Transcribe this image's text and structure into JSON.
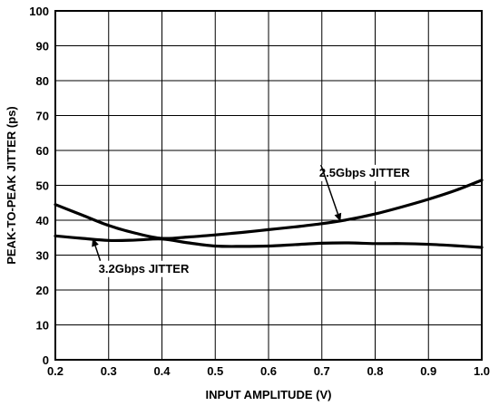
{
  "chart_data": {
    "type": "line",
    "xlabel": "INPUT AMPLITUDE (V)",
    "ylabel": "PEAK-TO-PEAK JITTER (ps)",
    "xlim": [
      0.2,
      1.0
    ],
    "ylim": [
      0,
      100
    ],
    "xticks": [
      "0.2",
      "0.3",
      "0.4",
      "0.5",
      "0.6",
      "0.7",
      "0.8",
      "0.9",
      "1.0"
    ],
    "yticks": [
      "0",
      "10",
      "20",
      "30",
      "40",
      "50",
      "60",
      "70",
      "80",
      "90",
      "100"
    ],
    "grid": true,
    "series": [
      {
        "name": "2.5Gbps JITTER",
        "x": [
          0.2,
          0.25,
          0.3,
          0.35,
          0.4,
          0.45,
          0.5,
          0.55,
          0.6,
          0.65,
          0.7,
          0.75,
          0.8,
          0.85,
          0.9,
          0.95,
          1.0
        ],
        "y": [
          44.5,
          41.5,
          38.5,
          36.3,
          34.8,
          35.2,
          35.8,
          36.5,
          37.3,
          38.1,
          39.0,
          40.2,
          41.8,
          43.8,
          46.0,
          48.5,
          51.5
        ]
      },
      {
        "name": "3.2Gbps JITTER",
        "x": [
          0.2,
          0.25,
          0.3,
          0.35,
          0.4,
          0.45,
          0.5,
          0.55,
          0.6,
          0.65,
          0.7,
          0.75,
          0.8,
          0.85,
          0.9,
          0.95,
          1.0
        ],
        "y": [
          35.5,
          34.8,
          34.2,
          34.3,
          34.6,
          33.5,
          32.6,
          32.5,
          32.6,
          33.0,
          33.4,
          33.5,
          33.3,
          33.3,
          33.1,
          32.7,
          32.2
        ]
      }
    ],
    "annotations": [
      {
        "text": "2.5Gbps JITTER",
        "series": "2.5Gbps JITTER",
        "text_x": 0.78,
        "text_y": 52.5,
        "arrow_x": 0.735,
        "arrow_y": 39.6
      },
      {
        "text": "3.2Gbps JITTER",
        "series": "3.2Gbps JITTER",
        "text_x": 0.366,
        "text_y": 25.0,
        "arrow_x": 0.27,
        "arrow_y": 34.9
      }
    ]
  }
}
